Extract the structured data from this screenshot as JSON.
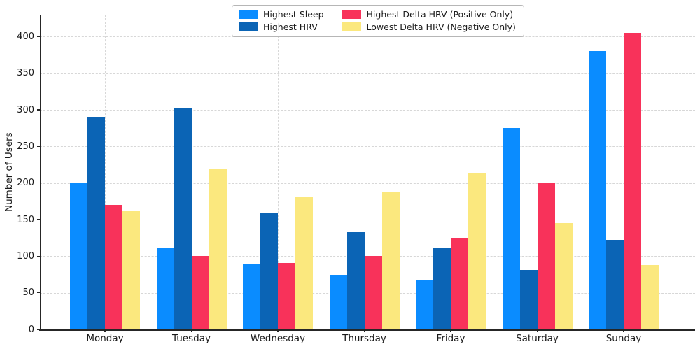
{
  "chart_data": {
    "type": "bar",
    "title": "",
    "xlabel": "",
    "ylabel": "Number of Users",
    "categories": [
      "Monday",
      "Tuesday",
      "Wednesday",
      "Thursday",
      "Friday",
      "Saturday",
      "Sunday"
    ],
    "series": [
      {
        "name": "Highest Sleep",
        "color": "#0a8cff",
        "values": [
          200,
          112,
          89,
          75,
          67,
          275,
          380
        ]
      },
      {
        "name": "Highest HRV",
        "color": "#0b64b5",
        "values": [
          290,
          302,
          160,
          133,
          111,
          81,
          122
        ]
      },
      {
        "name": "Highest Delta HRV (Positive Only)",
        "color": "#f8325a",
        "values": [
          170,
          100,
          91,
          100,
          125,
          200,
          405
        ]
      },
      {
        "name": "Lowest Delta HRV (Negative Only)",
        "color": "#fbe87e",
        "values": [
          162,
          220,
          182,
          187,
          214,
          145,
          88
        ]
      }
    ],
    "yticks": [
      0,
      50,
      100,
      150,
      200,
      250,
      300,
      350,
      400
    ],
    "ylim": [
      0,
      430
    ],
    "grid": "dashed, both axes, light gray",
    "legend_position": "upper center, 2 columns",
    "colors": {
      "background": "#ffffff",
      "gridline": "#d7d7d7",
      "axis": "#262626",
      "text": "#1a1a1a"
    }
  }
}
